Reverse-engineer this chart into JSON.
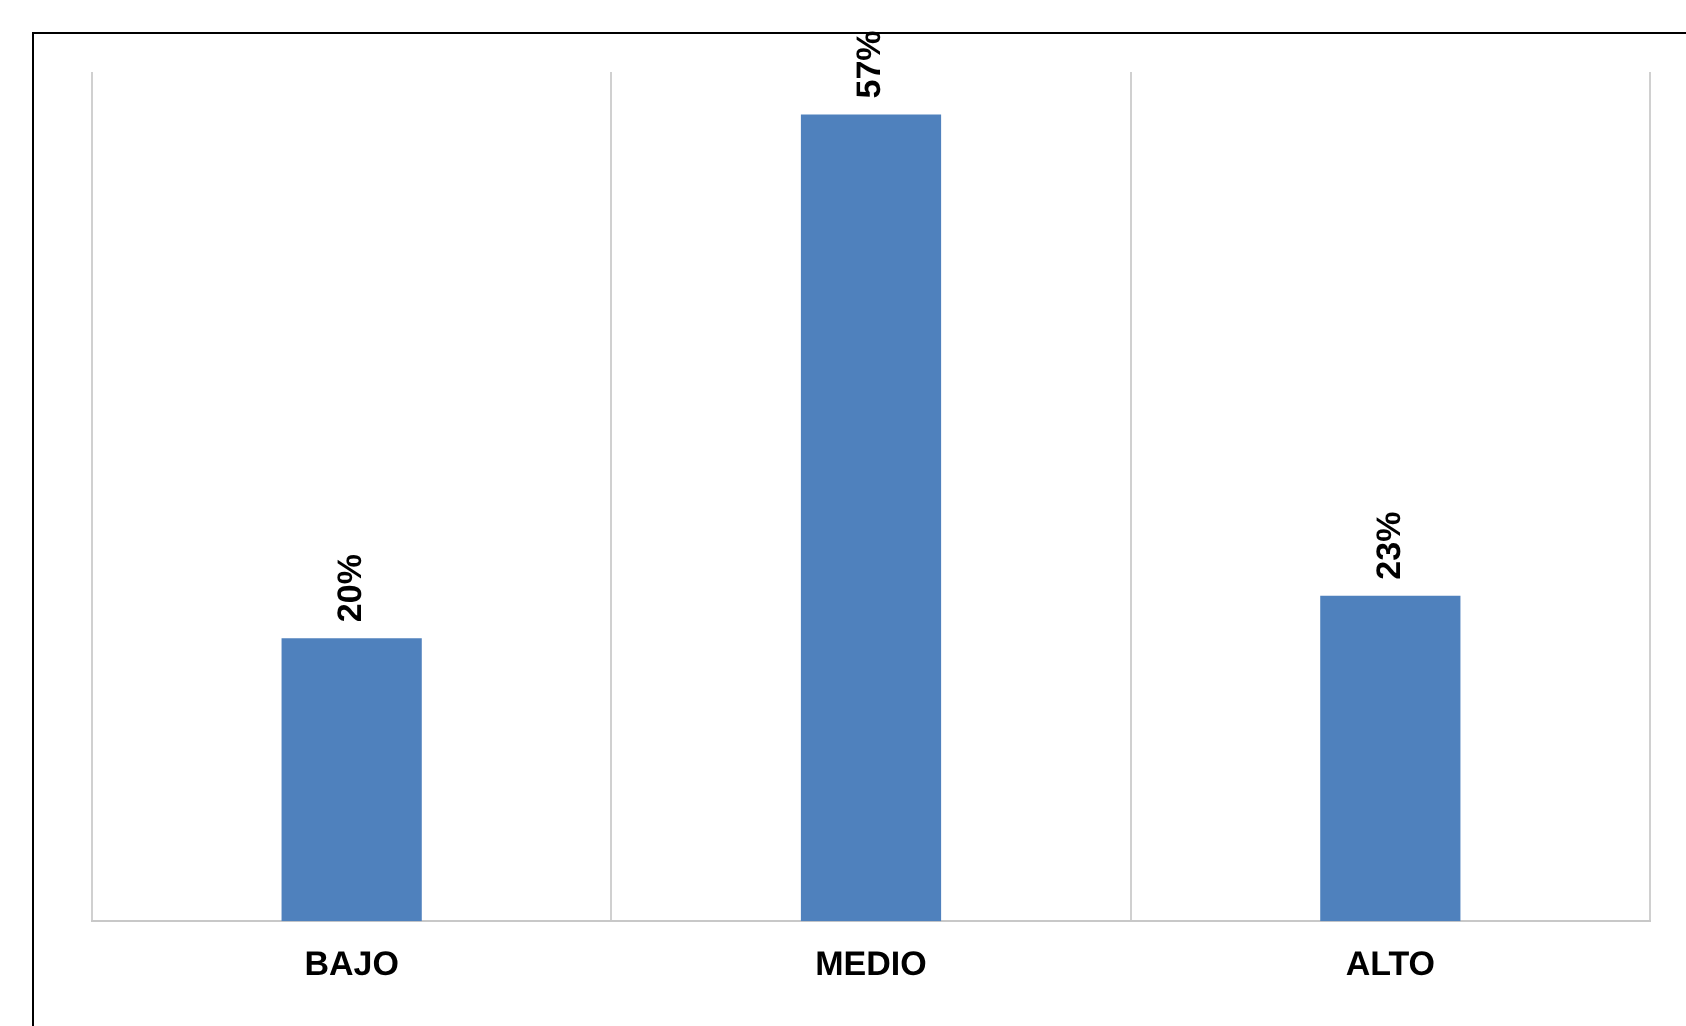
{
  "chart_data": {
    "type": "bar",
    "categories": [
      "BAJO",
      "MEDIO",
      "ALTO"
    ],
    "values": [
      20,
      57,
      23
    ],
    "value_labels": [
      "20%",
      "57%",
      "23%"
    ],
    "color": "#4f81bd",
    "grid": "x",
    "legend": false
  }
}
